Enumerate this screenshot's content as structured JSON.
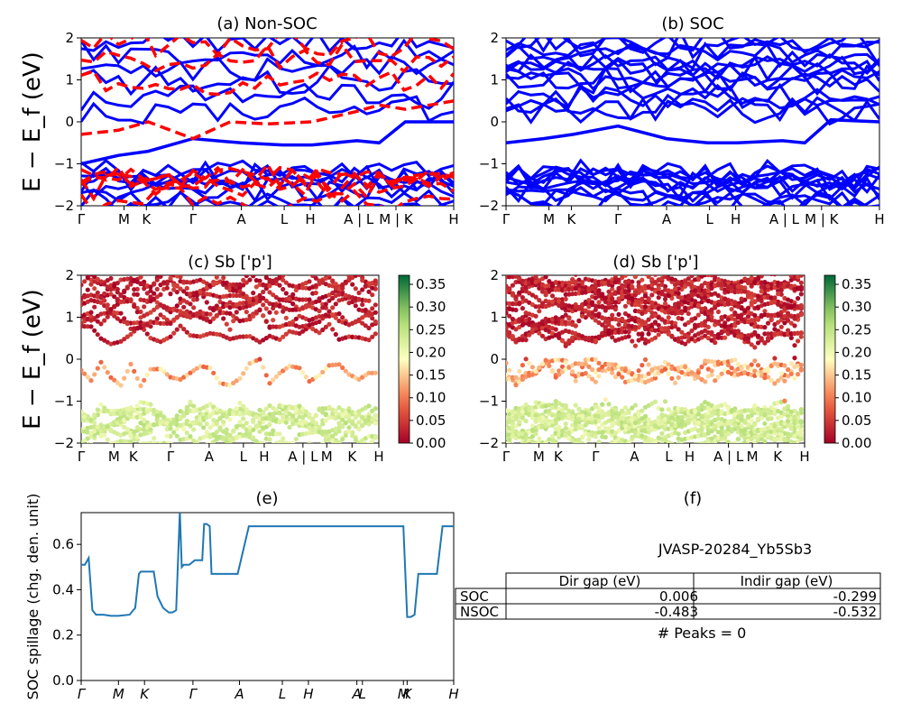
{
  "chart_data": [
    {
      "id": "a",
      "type": "line",
      "title": "(a) Non-SOC",
      "ylabel": "E − E_f (eV)",
      "ylim": [
        -2,
        2
      ],
      "yticks": [
        "2",
        "1",
        "0",
        "−1",
        "−2"
      ],
      "kpath_labels": [
        "Γ",
        "M",
        "K",
        "Γ",
        "A",
        "L",
        "H",
        "A | L",
        "M | K",
        "H"
      ],
      "series": [
        {
          "color": "#0000ff",
          "style": "solid",
          "x": [
            0,
            0.1,
            0.18,
            0.3,
            0.43,
            0.54,
            0.62,
            0.74,
            0.8,
            0.87,
            1.0
          ],
          "y": [
            -1.0,
            -0.8,
            -0.7,
            -0.4,
            -0.5,
            -0.55,
            -0.55,
            -0.45,
            -0.5,
            0.0,
            0.0
          ]
        },
        {
          "color": "#ff0000",
          "style": "dashed",
          "x": [
            0,
            0.1,
            0.18,
            0.3,
            0.4,
            0.5,
            0.62,
            0.74,
            0.8,
            0.87,
            1.0
          ],
          "y": [
            -0.3,
            -0.2,
            0.0,
            -0.4,
            0.0,
            -0.05,
            0.0,
            0.25,
            0.4,
            0.3,
            0.5
          ]
        }
      ]
    },
    {
      "id": "b",
      "type": "line",
      "title": "(b) SOC",
      "ylim": [
        -2,
        2
      ],
      "yticks": [
        "2",
        "1",
        "0",
        "−1",
        "−2"
      ],
      "kpath_labels": [
        "Γ",
        "M",
        "K",
        "Γ",
        "A",
        "L",
        "H",
        "A | L",
        "M | K",
        "H"
      ],
      "series": [
        {
          "color": "#0000ff",
          "style": "solid",
          "x": [
            0,
            0.1,
            0.18,
            0.3,
            0.43,
            0.54,
            0.62,
            0.74,
            0.8,
            0.87,
            1.0
          ],
          "y": [
            -0.5,
            -0.4,
            -0.3,
            -0.1,
            -0.4,
            -0.5,
            -0.5,
            -0.45,
            -0.5,
            0.05,
            0.0
          ]
        }
      ]
    },
    {
      "id": "c",
      "type": "scatter",
      "title": "(c)  Sb ['p']",
      "ylabel": "E − E_f (eV)",
      "ylim": [
        -2,
        2
      ],
      "yticks": [
        "2",
        "1",
        "0",
        "−1",
        "−2"
      ],
      "kpath_labels": [
        "Γ",
        "M",
        "K",
        "Γ",
        "A",
        "L",
        "H",
        "A | L",
        "M",
        "K",
        "H"
      ],
      "colorbar": {
        "min": 0.0,
        "max": 0.37,
        "ticks": [
          "0.35",
          "0.30",
          "0.25",
          "0.20",
          "0.15",
          "0.10",
          "0.05",
          "0.00"
        ]
      }
    },
    {
      "id": "d",
      "type": "scatter",
      "title": "(d) Sb ['p']",
      "ylim": [
        -2,
        2
      ],
      "yticks": [
        "2",
        "1",
        "0",
        "−1",
        "−2"
      ],
      "kpath_labels": [
        "Γ",
        "M",
        "K",
        "Γ",
        "A",
        "L",
        "H",
        "A | L",
        "M",
        "K",
        "H"
      ],
      "colorbar": {
        "min": 0.0,
        "max": 0.37,
        "ticks": [
          "0.35",
          "0.30",
          "0.25",
          "0.20",
          "0.15",
          "0.10",
          "0.05",
          "0.00"
        ]
      }
    },
    {
      "id": "e",
      "type": "line",
      "title": "(e)",
      "ylabel": "SOC spillage (chg. den. unit)",
      "ylim": [
        0,
        0.74
      ],
      "yticks": [
        "0.6",
        "0.4",
        "0.2",
        "0.0"
      ],
      "kpath_labels": [
        "Γ",
        "M",
        "K",
        "Γ",
        "A",
        "L",
        "H",
        "A",
        "L",
        "M",
        "K",
        "H"
      ],
      "series": [
        {
          "color": "#1f77b4",
          "x": [
            0,
            0.01,
            0.02,
            0.03,
            0.04,
            0.06,
            0.08,
            0.1,
            0.13,
            0.145,
            0.155,
            0.16,
            0.165,
            0.17,
            0.185,
            0.195,
            0.205,
            0.22,
            0.235,
            0.245,
            0.255,
            0.265,
            0.27,
            0.275,
            0.28,
            0.29,
            0.305,
            0.325,
            0.33,
            0.337,
            0.345,
            0.35,
            0.355,
            0.37,
            0.39,
            0.42,
            0.45,
            0.48,
            0.52,
            0.56,
            0.6,
            0.65,
            0.69,
            0.74,
            0.76,
            0.78,
            0.8,
            0.81,
            0.82,
            0.83,
            0.845,
            0.855,
            0.865,
            0.875,
            0.885,
            0.895,
            0.905,
            0.935,
            0.945,
            0.955,
            0.97,
            0.98,
            0.99,
            1.0
          ],
          "y": [
            0.51,
            0.51,
            0.54,
            0.31,
            0.29,
            0.29,
            0.285,
            0.285,
            0.29,
            0.32,
            0.47,
            0.48,
            0.48,
            0.48,
            0.48,
            0.48,
            0.37,
            0.32,
            0.3,
            0.3,
            0.31,
            0.745,
            0.5,
            0.51,
            0.51,
            0.51,
            0.53,
            0.53,
            0.69,
            0.69,
            0.68,
            0.47,
            0.47,
            0.47,
            0.47,
            0.47,
            0.68,
            0.68,
            0.68,
            0.68,
            0.68,
            0.68,
            0.68,
            0.68,
            0.68,
            0.68,
            0.68,
            0.68,
            0.68,
            0.68,
            0.68,
            0.68,
            0.68,
            0.28,
            0.28,
            0.29,
            0.47,
            0.47,
            0.47,
            0.47,
            0.68,
            0.68,
            0.68,
            0.68
          ]
        }
      ]
    }
  ],
  "panel_f": {
    "title": "(f)",
    "material": "JVASP-20284_Yb5Sb3",
    "columns": [
      "Dir gap (eV)",
      "Indir gap (eV)"
    ],
    "rows": [
      {
        "label": "SOC",
        "dir": "0.006",
        "indir": "-0.299"
      },
      {
        "label": "NSOC",
        "dir": "-0.483",
        "indir": "-0.532"
      }
    ],
    "peaks": "# Peaks = 0"
  }
}
